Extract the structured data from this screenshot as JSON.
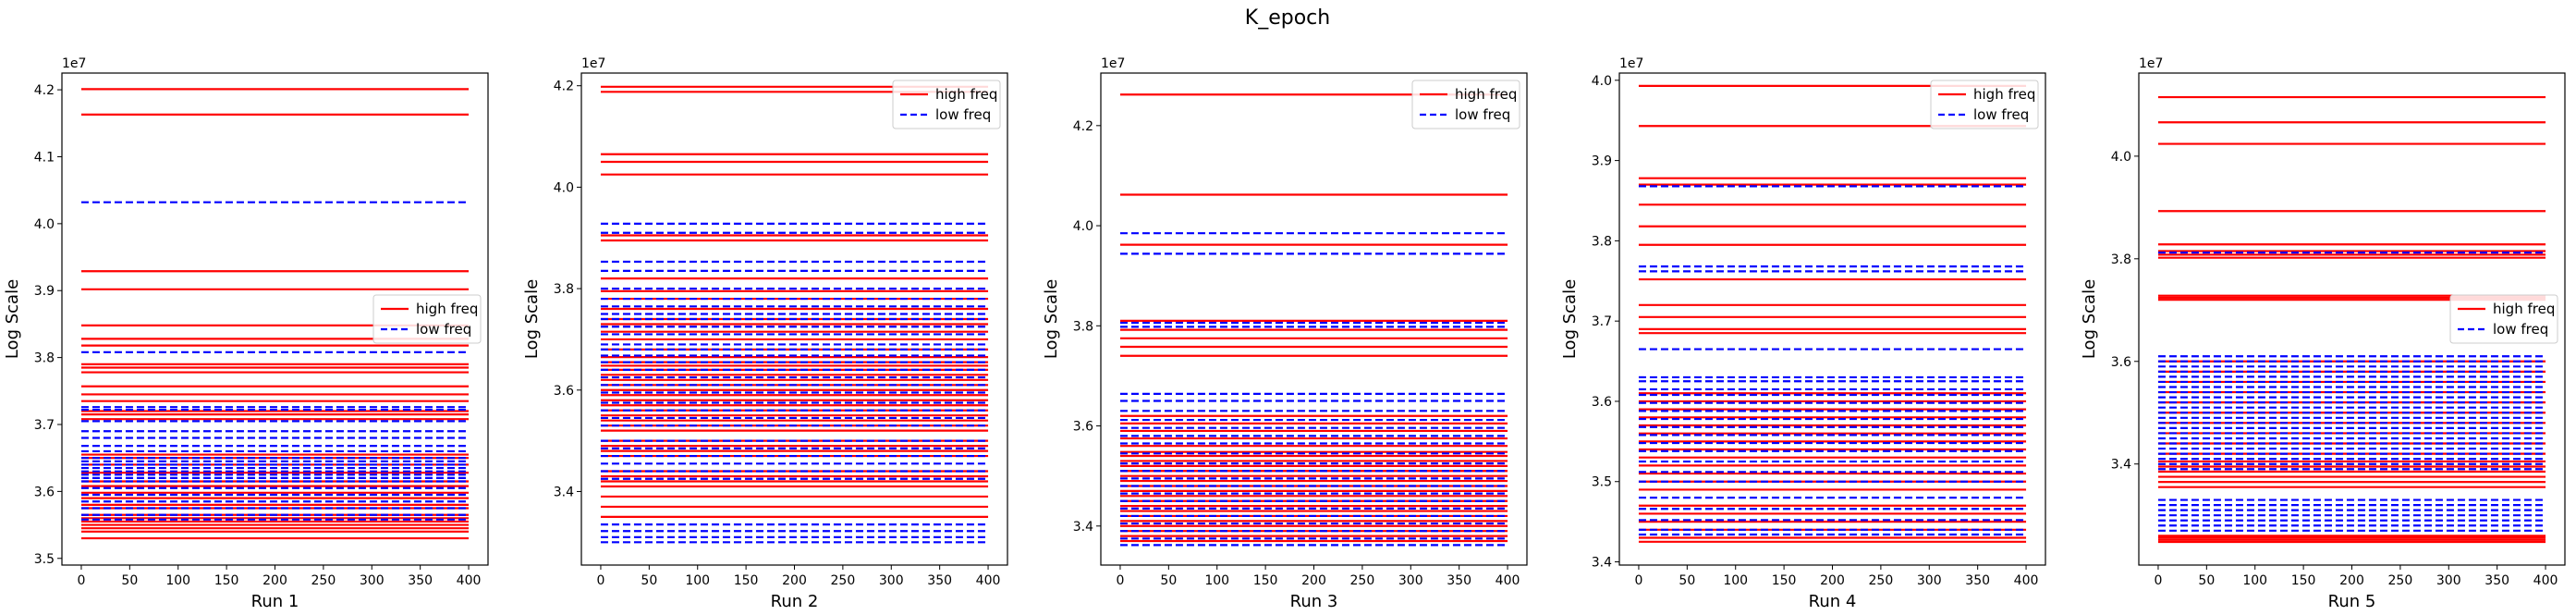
{
  "figure": {
    "title": "K_epoch"
  },
  "colors": {
    "high_freq": "#ff0000",
    "low_freq": "#0000ff",
    "frame": "#000000"
  },
  "chart_data": [
    {
      "type": "line",
      "xlabel": "Run 1",
      "ylabel": "Log Scale",
      "y_offset_label": "1e7",
      "xlim": [
        -20,
        420
      ],
      "ylim": [
        3.49,
        4.225
      ],
      "xticks": [
        0,
        50,
        100,
        150,
        200,
        250,
        300,
        350,
        400
      ],
      "yticks": [
        3.5,
        3.6,
        3.7,
        3.8,
        3.9,
        4.0,
        4.1,
        4.2
      ],
      "x_range": [
        0,
        400
      ],
      "legend": {
        "position": "center-right",
        "entries": [
          "high freq",
          "low freq"
        ]
      },
      "series": [
        {
          "name": "high freq",
          "style": "solid",
          "color": "red",
          "levels": [
            4.201,
            4.163,
            3.929,
            3.902,
            3.848,
            3.828,
            3.818,
            3.79,
            3.785,
            3.778,
            3.757,
            3.745,
            3.735,
            3.72,
            3.715,
            3.708,
            3.655,
            3.65,
            3.64,
            3.628,
            3.615,
            3.608,
            3.598,
            3.59,
            3.58,
            3.575,
            3.565,
            3.56,
            3.555,
            3.55,
            3.545,
            3.54,
            3.53
          ]
        },
        {
          "name": "low freq",
          "style": "dashed",
          "color": "blue",
          "levels": [
            4.032,
            3.808,
            3.726,
            3.722,
            3.705,
            3.69,
            3.68,
            3.668,
            3.66,
            3.65,
            3.645,
            3.64,
            3.635,
            3.63,
            3.625,
            3.62,
            3.615,
            3.605,
            3.595,
            3.585,
            3.575,
            3.565,
            3.558
          ]
        }
      ]
    },
    {
      "type": "line",
      "xlabel": "Run 2",
      "ylabel": "Log Scale",
      "y_offset_label": "1e7",
      "xlim": [
        -20,
        420
      ],
      "ylim": [
        3.255,
        4.225
      ],
      "xticks": [
        0,
        50,
        100,
        150,
        200,
        250,
        300,
        350,
        400
      ],
      "yticks": [
        3.4,
        3.6,
        3.8,
        4.0,
        4.2
      ],
      "x_range": [
        0,
        400
      ],
      "legend": {
        "position": "top-right",
        "entries": [
          "high freq",
          "low freq"
        ]
      },
      "series": [
        {
          "name": "high freq",
          "style": "solid",
          "color": "red",
          "levels": [
            4.198,
            4.188,
            4.065,
            4.05,
            4.025,
            3.905,
            3.895,
            3.82,
            3.795,
            3.78,
            3.76,
            3.74,
            3.73,
            3.715,
            3.7,
            3.68,
            3.665,
            3.655,
            3.648,
            3.64,
            3.63,
            3.62,
            3.61,
            3.6,
            3.59,
            3.58,
            3.57,
            3.56,
            3.55,
            3.54,
            3.53,
            3.52,
            3.5,
            3.49,
            3.48,
            3.47,
            3.44,
            3.43,
            3.42,
            3.41,
            3.39,
            3.37,
            3.35
          ]
        },
        {
          "name": "low freq",
          "style": "dashed",
          "color": "blue",
          "levels": [
            3.928,
            3.91,
            3.853,
            3.835,
            3.8,
            3.78,
            3.765,
            3.75,
            3.74,
            3.725,
            3.71,
            3.69,
            3.68,
            3.668,
            3.655,
            3.64,
            3.625,
            3.61,
            3.595,
            3.575,
            3.56,
            3.545,
            3.53,
            3.5,
            3.485,
            3.47,
            3.455,
            3.44,
            3.425,
            3.335,
            3.322,
            3.31,
            3.3
          ]
        }
      ]
    },
    {
      "type": "line",
      "xlabel": "Run 3",
      "ylabel": "Log Scale",
      "y_offset_label": "1e7",
      "xlim": [
        -20,
        420
      ],
      "ylim": [
        3.322,
        4.305
      ],
      "xticks": [
        0,
        50,
        100,
        150,
        200,
        250,
        300,
        350,
        400
      ],
      "yticks": [
        3.4,
        3.6,
        3.8,
        4.0,
        4.2
      ],
      "x_range": [
        0,
        400
      ],
      "legend": {
        "position": "top-right",
        "entries": [
          "high freq",
          "low freq"
        ]
      },
      "series": [
        {
          "name": "high freq",
          "style": "solid",
          "color": "red",
          "levels": [
            4.262,
            4.062,
            3.962,
            3.81,
            3.792,
            3.775,
            3.758,
            3.74,
            3.62,
            3.605,
            3.59,
            3.575,
            3.56,
            3.548,
            3.54,
            3.53,
            3.52,
            3.51,
            3.5,
            3.49,
            3.48,
            3.47,
            3.46,
            3.45,
            3.44,
            3.43,
            3.42,
            3.41,
            3.4,
            3.39,
            3.38,
            3.37
          ]
        },
        {
          "name": "low freq",
          "style": "dashed",
          "color": "blue",
          "levels": [
            3.985,
            3.944,
            3.806,
            3.798,
            3.664,
            3.65,
            3.63,
            3.612,
            3.596,
            3.58,
            3.565,
            3.545,
            3.525,
            3.51,
            3.495,
            3.48,
            3.465,
            3.45,
            3.435,
            3.42,
            3.405,
            3.39,
            3.375,
            3.362
          ]
        }
      ]
    },
    {
      "type": "line",
      "xlabel": "Run 4",
      "ylabel": "Log Scale",
      "y_offset_label": "1e7",
      "xlim": [
        -20,
        420
      ],
      "ylim": [
        3.396,
        4.009
      ],
      "xticks": [
        0,
        50,
        100,
        150,
        200,
        250,
        300,
        350,
        400
      ],
      "yticks": [
        3.4,
        3.5,
        3.6,
        3.7,
        3.8,
        3.9,
        4.0
      ],
      "x_range": [
        0,
        400
      ],
      "legend": {
        "position": "top-right",
        "entries": [
          "high freq",
          "low freq"
        ]
      },
      "series": [
        {
          "name": "high freq",
          "style": "solid",
          "color": "red",
          "levels": [
            3.993,
            3.943,
            3.878,
            3.87,
            3.845,
            3.818,
            3.795,
            3.752,
            3.72,
            3.705,
            3.69,
            3.685,
            3.61,
            3.6,
            3.59,
            3.58,
            3.57,
            3.56,
            3.55,
            3.54,
            3.53,
            3.52,
            3.51,
            3.5,
            3.49,
            3.47,
            3.46,
            3.45,
            3.44,
            3.43,
            3.425
          ]
        },
        {
          "name": "low freq",
          "style": "dashed",
          "color": "blue",
          "levels": [
            3.868,
            3.768,
            3.762,
            3.665,
            3.63,
            3.625,
            3.615,
            3.608,
            3.598,
            3.588,
            3.578,
            3.568,
            3.558,
            3.548,
            3.538,
            3.525,
            3.512,
            3.5,
            3.48,
            3.466,
            3.452,
            3.44,
            3.434
          ]
        }
      ]
    },
    {
      "type": "line",
      "xlabel": "Run 5",
      "ylabel": "Log Scale",
      "y_offset_label": "1e7",
      "xlim": [
        -20,
        420
      ],
      "ylim": [
        3.203,
        4.162
      ],
      "xticks": [
        0,
        50,
        100,
        150,
        200,
        250,
        300,
        350,
        400
      ],
      "yticks": [
        3.4,
        3.6,
        3.8,
        4.0
      ],
      "x_range": [
        0,
        400
      ],
      "legend": {
        "position": "center-right",
        "entries": [
          "high freq",
          "low freq"
        ]
      },
      "series": [
        {
          "name": "high freq",
          "style": "solid",
          "color": "red",
          "levels": [
            4.115,
            4.066,
            4.024,
            3.893,
            3.828,
            3.815,
            3.808,
            3.802,
            3.728,
            3.724,
            3.72,
            3.6,
            3.58,
            3.56,
            3.54,
            3.52,
            3.5,
            3.48,
            3.46,
            3.44,
            3.42,
            3.405,
            3.395,
            3.385,
            3.375,
            3.365,
            3.355,
            3.26,
            3.256,
            3.252,
            3.248
          ]
        },
        {
          "name": "low freq",
          "style": "dashed",
          "color": "blue",
          "levels": [
            3.812,
            3.61,
            3.6,
            3.59,
            3.58,
            3.57,
            3.56,
            3.55,
            3.54,
            3.53,
            3.52,
            3.51,
            3.5,
            3.49,
            3.48,
            3.47,
            3.46,
            3.45,
            3.44,
            3.43,
            3.42,
            3.41,
            3.4,
            3.39,
            3.33,
            3.32,
            3.31,
            3.3,
            3.29,
            3.28,
            3.27
          ]
        }
      ]
    }
  ]
}
